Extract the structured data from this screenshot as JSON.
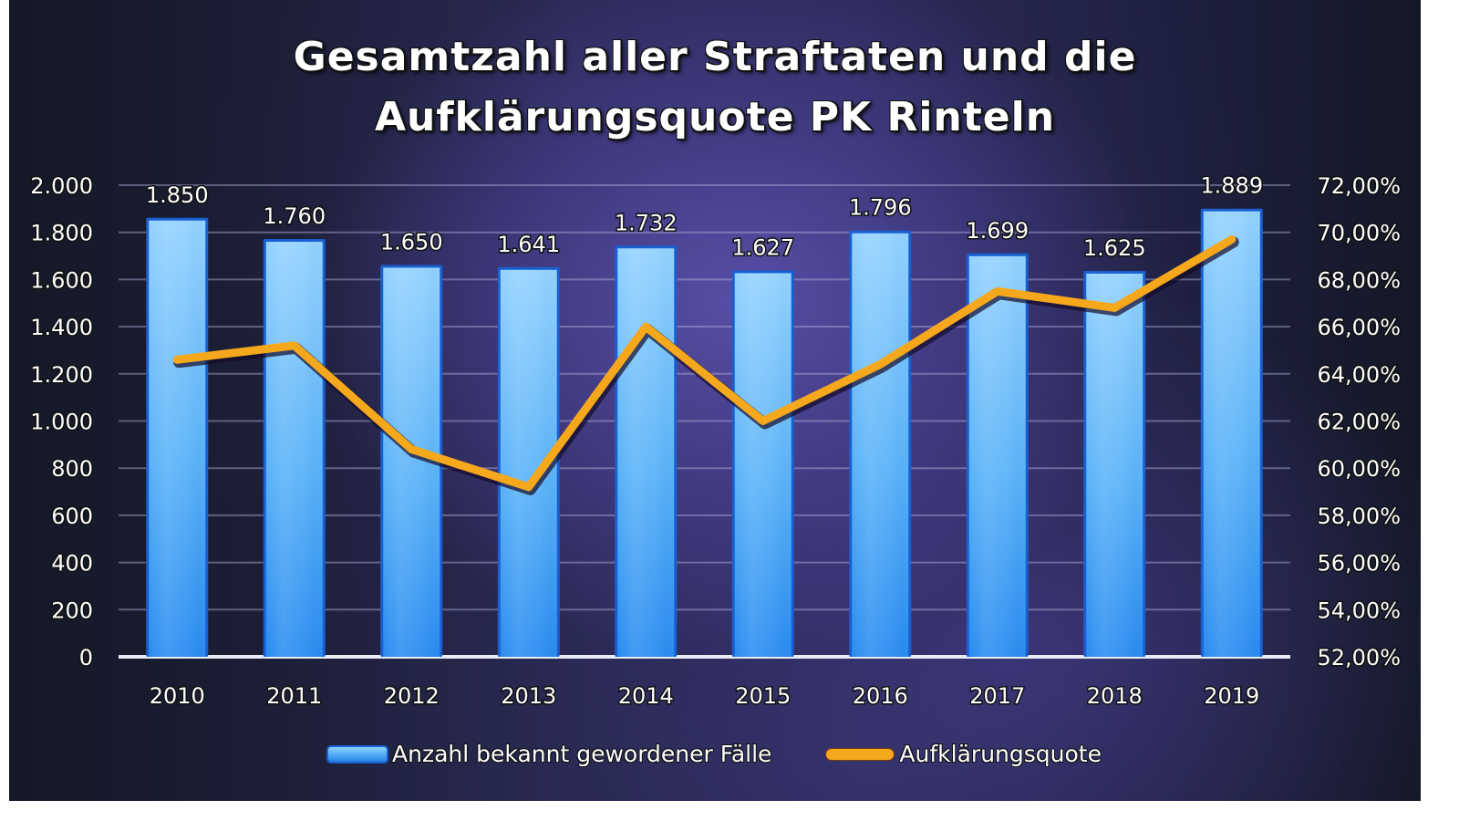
{
  "title_lines": [
    "Gesamtzahl aller Straftaten und die",
    "Aufklärungsquote PK Rinteln"
  ],
  "legend": {
    "bars": "Anzahl bekannt gewordener Fälle",
    "line": "Aufklärungsquote"
  },
  "colors": {
    "bar_fill_top": "#8fd0ff",
    "bar_fill_bottom": "#2a8cf0",
    "bar_edge": "#1a5fd0",
    "line": "#f6a81c",
    "background": "#2a2a55",
    "text": "#ffffff"
  },
  "left_axis_ticks": [
    "2.000",
    "1.800",
    "1.600",
    "1.400",
    "1.200",
    "1.000",
    "800",
    "600",
    "400",
    "200",
    "0"
  ],
  "right_axis_ticks": [
    "72,00%",
    "70,00%",
    "68,00%",
    "66,00%",
    "64,00%",
    "62,00%",
    "60,00%",
    "58,00%",
    "56,00%",
    "54,00%",
    "52,00%"
  ],
  "bar_labels": [
    "1.850",
    "1.760",
    "1.650",
    "1.641",
    "1.732",
    "1.627",
    "1.796",
    "1.699",
    "1.625",
    "1.889"
  ],
  "chart_data": {
    "type": "bar",
    "title": "Gesamtzahl aller Straftaten und die Aufklärungsquote PK Rinteln",
    "categories": [
      "2010",
      "2011",
      "2012",
      "2013",
      "2014",
      "2015",
      "2016",
      "2017",
      "2018",
      "2019"
    ],
    "series": [
      {
        "name": "Anzahl bekannt gewordener Fälle",
        "type": "bar",
        "axis": "left",
        "values": [
          1850,
          1760,
          1650,
          1641,
          1732,
          1627,
          1796,
          1699,
          1625,
          1889
        ],
        "data_labels": true
      },
      {
        "name": "Aufklärungsquote",
        "type": "line",
        "axis": "right",
        "unit": "%",
        "values": [
          64.6,
          65.2,
          60.8,
          59.2,
          66.0,
          62.0,
          64.4,
          67.5,
          66.8,
          69.7
        ]
      }
    ],
    "xlabel": "",
    "ylabel": "",
    "y_left": {
      "range": [
        0,
        2000
      ],
      "step": 200
    },
    "y_right": {
      "range": [
        52,
        72
      ],
      "step": 2,
      "format": "0,00%"
    },
    "grid": true,
    "legend_position": "bottom"
  }
}
